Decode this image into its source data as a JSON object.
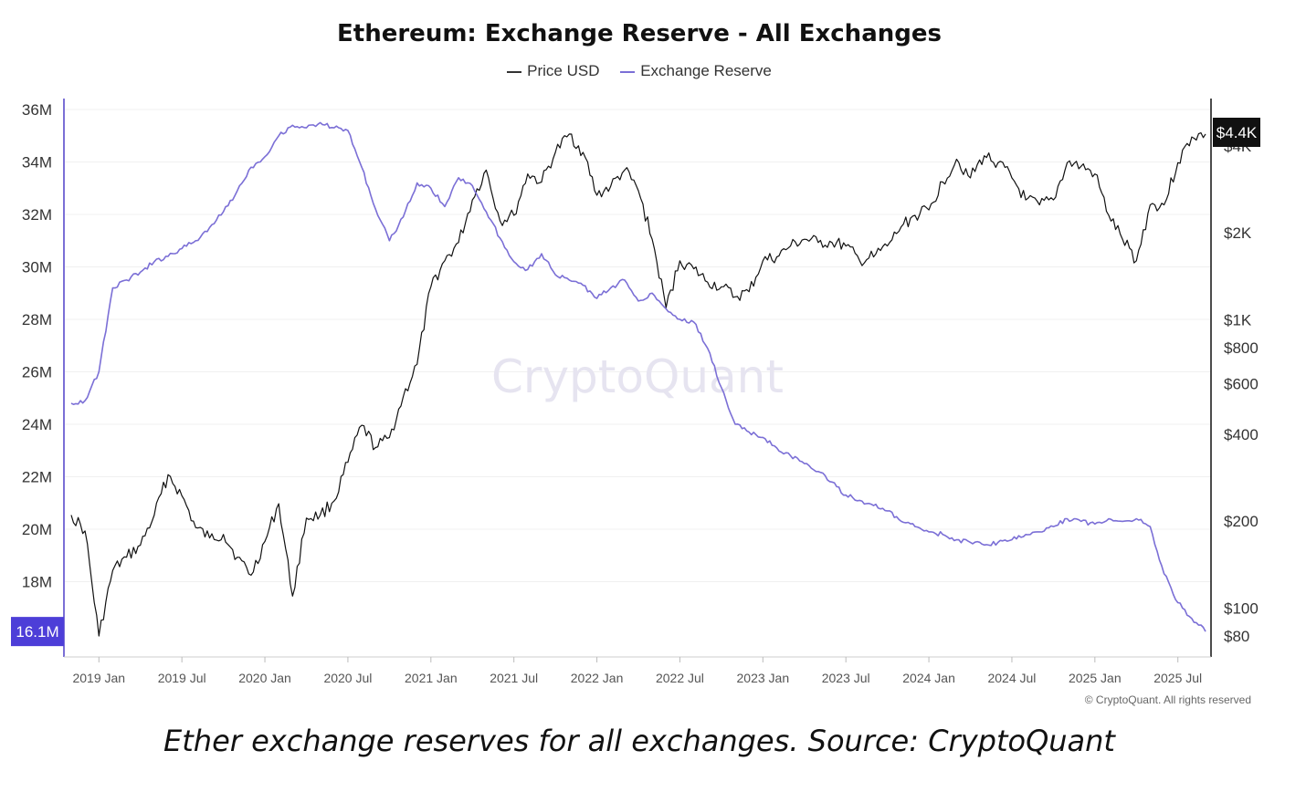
{
  "chart_data": {
    "type": "line",
    "title": "Ethereum: Exchange Reserve - All Exchanges",
    "watermark": "CryptoQuant",
    "copyright": "© CryptoQuant. All rights reserved",
    "caption": "Ether exchange reserves for all exchanges. Source: CryptoQuant",
    "legend_position": "top-center",
    "grid": true,
    "x_range": [
      "2018-11",
      "2025-09"
    ],
    "x_ticks": [
      "2019 Jan",
      "2019 Jul",
      "2020 Jan",
      "2020 Jul",
      "2021 Jan",
      "2021 Jul",
      "2022 Jan",
      "2022 Jul",
      "2023 Jan",
      "2023 Jul",
      "2024 Jan",
      "2024 Jul",
      "2025 Jan",
      "2025 Jul"
    ],
    "x_tick_dates": [
      "2019-01",
      "2019-07",
      "2020-01",
      "2020-07",
      "2021-01",
      "2021-07",
      "2022-01",
      "2022-07",
      "2023-01",
      "2023-07",
      "2024-01",
      "2024-07",
      "2025-01",
      "2025-07"
    ],
    "y_left": {
      "ylim": [
        15000000,
        36000000
      ],
      "ticks": [
        18000000,
        20000000,
        22000000,
        24000000,
        26000000,
        28000000,
        30000000,
        32000000,
        34000000,
        36000000
      ],
      "tick_labels": [
        "18M",
        "20M",
        "22M",
        "24M",
        "26M",
        "28M",
        "30M",
        "32M",
        "34M",
        "36M"
      ],
      "current_label": "16.1M",
      "current_value": 16100000
    },
    "y_right": {
      "scale": "log",
      "ylim": [
        70,
        5000
      ],
      "ticks": [
        80,
        100,
        200,
        400,
        600,
        800,
        1000,
        2000,
        4000
      ],
      "tick_labels": [
        "$80",
        "$100",
        "$200",
        "$400",
        "$600",
        "$800",
        "$1K",
        "$2K",
        "$4K"
      ],
      "current_label": "$4.4K",
      "current_value": 4400
    },
    "series": [
      {
        "name": "Price USD",
        "color": "#111111",
        "axis": "right",
        "x": [
          "2018-11",
          "2018-12",
          "2019-01",
          "2019-02",
          "2019-03",
          "2019-04",
          "2019-05",
          "2019-06",
          "2019-07",
          "2019-08",
          "2019-09",
          "2019-10",
          "2019-11",
          "2019-12",
          "2020-01",
          "2020-02",
          "2020-03",
          "2020-04",
          "2020-05",
          "2020-06",
          "2020-07",
          "2020-08",
          "2020-09",
          "2020-10",
          "2020-11",
          "2020-12",
          "2021-01",
          "2021-02",
          "2021-03",
          "2021-04",
          "2021-05",
          "2021-06",
          "2021-07",
          "2021-08",
          "2021-09",
          "2021-10",
          "2021-11",
          "2021-12",
          "2022-01",
          "2022-02",
          "2022-03",
          "2022-04",
          "2022-05",
          "2022-06",
          "2022-07",
          "2022-08",
          "2022-09",
          "2022-10",
          "2022-11",
          "2022-12",
          "2023-01",
          "2023-02",
          "2023-03",
          "2023-04",
          "2023-05",
          "2023-06",
          "2023-07",
          "2023-08",
          "2023-09",
          "2023-10",
          "2023-11",
          "2023-12",
          "2024-01",
          "2024-02",
          "2024-03",
          "2024-04",
          "2024-05",
          "2024-06",
          "2024-07",
          "2024-08",
          "2024-09",
          "2024-10",
          "2024-11",
          "2024-12",
          "2025-01",
          "2025-02",
          "2025-03",
          "2025-04",
          "2025-05",
          "2025-06",
          "2025-07",
          "2025-08",
          "2025-09"
        ],
        "values": [
          210,
          185,
          80,
          135,
          150,
          165,
          210,
          290,
          245,
          190,
          175,
          180,
          150,
          130,
          170,
          230,
          110,
          205,
          210,
          235,
          320,
          430,
          360,
          390,
          540,
          700,
          1300,
          1600,
          1850,
          2600,
          3300,
          2200,
          2300,
          3200,
          3000,
          3800,
          4400,
          3800,
          2700,
          2900,
          3300,
          2800,
          1900,
          1100,
          1600,
          1500,
          1350,
          1300,
          1200,
          1250,
          1600,
          1650,
          1800,
          1900,
          1850,
          1850,
          1800,
          1600,
          1650,
          1800,
          2100,
          2300,
          2400,
          3000,
          3600,
          3100,
          3700,
          3500,
          3100,
          2600,
          2500,
          2600,
          3500,
          3400,
          3200,
          2300,
          1900,
          1600,
          2500,
          2500,
          3500,
          4300,
          4400
        ]
      },
      {
        "name": "Exchange Reserve",
        "color": "#7b6fd6",
        "axis": "left",
        "x": [
          "2018-11",
          "2018-12",
          "2019-01",
          "2019-02",
          "2019-03",
          "2019-04",
          "2019-05",
          "2019-06",
          "2019-07",
          "2019-08",
          "2019-09",
          "2019-10",
          "2019-11",
          "2019-12",
          "2020-01",
          "2020-02",
          "2020-03",
          "2020-04",
          "2020-05",
          "2020-06",
          "2020-07",
          "2020-08",
          "2020-09",
          "2020-10",
          "2020-11",
          "2020-12",
          "2021-01",
          "2021-02",
          "2021-03",
          "2021-04",
          "2021-05",
          "2021-06",
          "2021-07",
          "2021-08",
          "2021-09",
          "2021-10",
          "2021-11",
          "2021-12",
          "2022-01",
          "2022-02",
          "2022-03",
          "2022-04",
          "2022-05",
          "2022-06",
          "2022-07",
          "2022-08",
          "2022-09",
          "2022-10",
          "2022-11",
          "2022-12",
          "2023-01",
          "2023-02",
          "2023-03",
          "2023-04",
          "2023-05",
          "2023-06",
          "2023-07",
          "2023-08",
          "2023-09",
          "2023-10",
          "2023-11",
          "2023-12",
          "2024-01",
          "2024-02",
          "2024-03",
          "2024-04",
          "2024-05",
          "2024-06",
          "2024-07",
          "2024-08",
          "2024-09",
          "2024-10",
          "2024-11",
          "2024-12",
          "2025-01",
          "2025-02",
          "2025-03",
          "2025-04",
          "2025-05",
          "2025-06",
          "2025-07",
          "2025-08",
          "2025-09"
        ],
        "values": [
          24800000,
          24900000,
          26000000,
          29200000,
          29500000,
          29800000,
          30200000,
          30400000,
          30700000,
          31000000,
          31500000,
          32100000,
          32900000,
          33800000,
          34200000,
          35000000,
          35400000,
          35300000,
          35500000,
          35300000,
          35200000,
          33800000,
          32200000,
          31000000,
          31900000,
          33200000,
          33000000,
          32300000,
          33400000,
          33100000,
          32100000,
          31100000,
          30200000,
          29900000,
          30500000,
          29700000,
          29500000,
          29300000,
          28800000,
          29200000,
          29500000,
          28700000,
          29000000,
          28400000,
          28000000,
          27900000,
          26900000,
          25400000,
          24000000,
          23700000,
          23500000,
          23100000,
          22800000,
          22500000,
          22200000,
          21800000,
          21300000,
          21100000,
          20900000,
          20700000,
          20300000,
          20100000,
          19900000,
          19800000,
          19600000,
          19500000,
          19400000,
          19500000,
          19600000,
          19800000,
          19900000,
          20100000,
          20400000,
          20300000,
          20200000,
          20400000,
          20300000,
          20400000,
          20100000,
          18300000,
          17200000,
          16600000,
          16100000
        ]
      }
    ]
  },
  "page": {
    "title": "Ethereum: Exchange Reserve - All Exchanges",
    "caption": "Ether exchange reserves for all exchanges. Source: CryptoQuant",
    "copyright": "© CryptoQuant. All rights reserved",
    "legend": [
      "Price USD",
      "Exchange Reserve"
    ]
  }
}
